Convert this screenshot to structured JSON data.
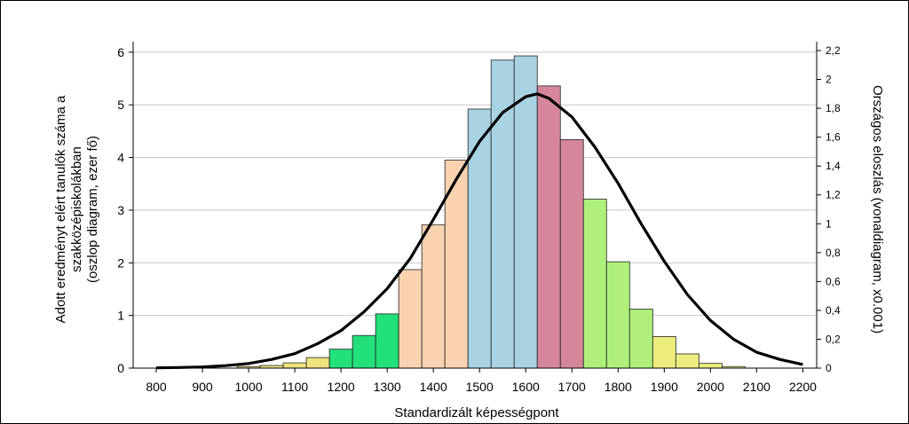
{
  "chart_data": {
    "type": "bar",
    "xlabel": "Standardizált képességpont",
    "ylabel_lines": [
      "Adott eredményt elért tanulók száma a",
      "szakközépiskolákban",
      "(oszlop diagram, ezer fő)"
    ],
    "y2label": "Országos eloszlás (vonaldiagram, x0.001)",
    "x_ticks": [
      "800",
      "900",
      "1000",
      "1100",
      "1200",
      "1300",
      "1400",
      "1500",
      "1600",
      "1700",
      "1800",
      "1900",
      "2000",
      "2100",
      "2200"
    ],
    "y_ticks": [
      "0",
      "1",
      "2",
      "3",
      "4",
      "5",
      "6"
    ],
    "y2_ticks": [
      "0",
      "0,2",
      "0,4",
      "0,6",
      "0,8",
      "1",
      "1,2",
      "1,4",
      "1,6",
      "1,8",
      "2",
      "2,2"
    ],
    "xlim": [
      750,
      2230
    ],
    "ylim": [
      0,
      6.2
    ],
    "y2lim": [
      0,
      2.2
    ],
    "grid": true,
    "bar_width": 50,
    "bar_centers": [
      800,
      850,
      900,
      950,
      1000,
      1050,
      1100,
      1150,
      1200,
      1250,
      1300,
      1350,
      1400,
      1450,
      1500,
      1550,
      1600,
      1650,
      1700,
      1750,
      1800,
      1850,
      1900,
      1950,
      2000,
      2050,
      2100,
      2150
    ],
    "values": [
      0,
      0,
      0,
      0,
      0.03,
      0.05,
      0.1,
      0.2,
      0.36,
      0.62,
      1.03,
      1.87,
      2.72,
      3.95,
      4.92,
      5.85,
      5.93,
      5.36,
      4.34,
      3.21,
      2.02,
      1.12,
      0.6,
      0.27,
      0.09,
      0.03,
      0,
      0
    ],
    "bar_colors": [
      "#f4f0a8",
      "#f4f0a8",
      "#f4f0a8",
      "#f4f0a8",
      "#f0e27e",
      "#f0e27e",
      "#f0e27e",
      "#f0e27e",
      "#22e07a",
      "#22e07a",
      "#22e07a",
      "#f9d3b0",
      "#f9d3b0",
      "#f9d3b0",
      "#a8d3e3",
      "#a8d3e3",
      "#a8d3e3",
      "#d5869a",
      "#d5869a",
      "#aef07a",
      "#aef07a",
      "#aef07a",
      "#eded7e",
      "#eded7e",
      "#eded7e",
      "#eded7e",
      "#eded7e",
      "#eded7e"
    ],
    "line_series": {
      "x": [
        800,
        850,
        900,
        950,
        1000,
        1050,
        1100,
        1150,
        1200,
        1250,
        1300,
        1350,
        1400,
        1450,
        1500,
        1550,
        1600,
        1625,
        1650,
        1700,
        1750,
        1800,
        1850,
        1900,
        1950,
        2000,
        2050,
        2100,
        2150,
        2200
      ],
      "y": [
        0.002,
        0.004,
        0.008,
        0.017,
        0.032,
        0.06,
        0.1,
        0.17,
        0.26,
        0.39,
        0.55,
        0.76,
        1.03,
        1.31,
        1.57,
        1.77,
        1.88,
        1.9,
        1.87,
        1.74,
        1.53,
        1.28,
        1.0,
        0.74,
        0.51,
        0.33,
        0.2,
        0.11,
        0.06,
        0.025
      ]
    }
  }
}
